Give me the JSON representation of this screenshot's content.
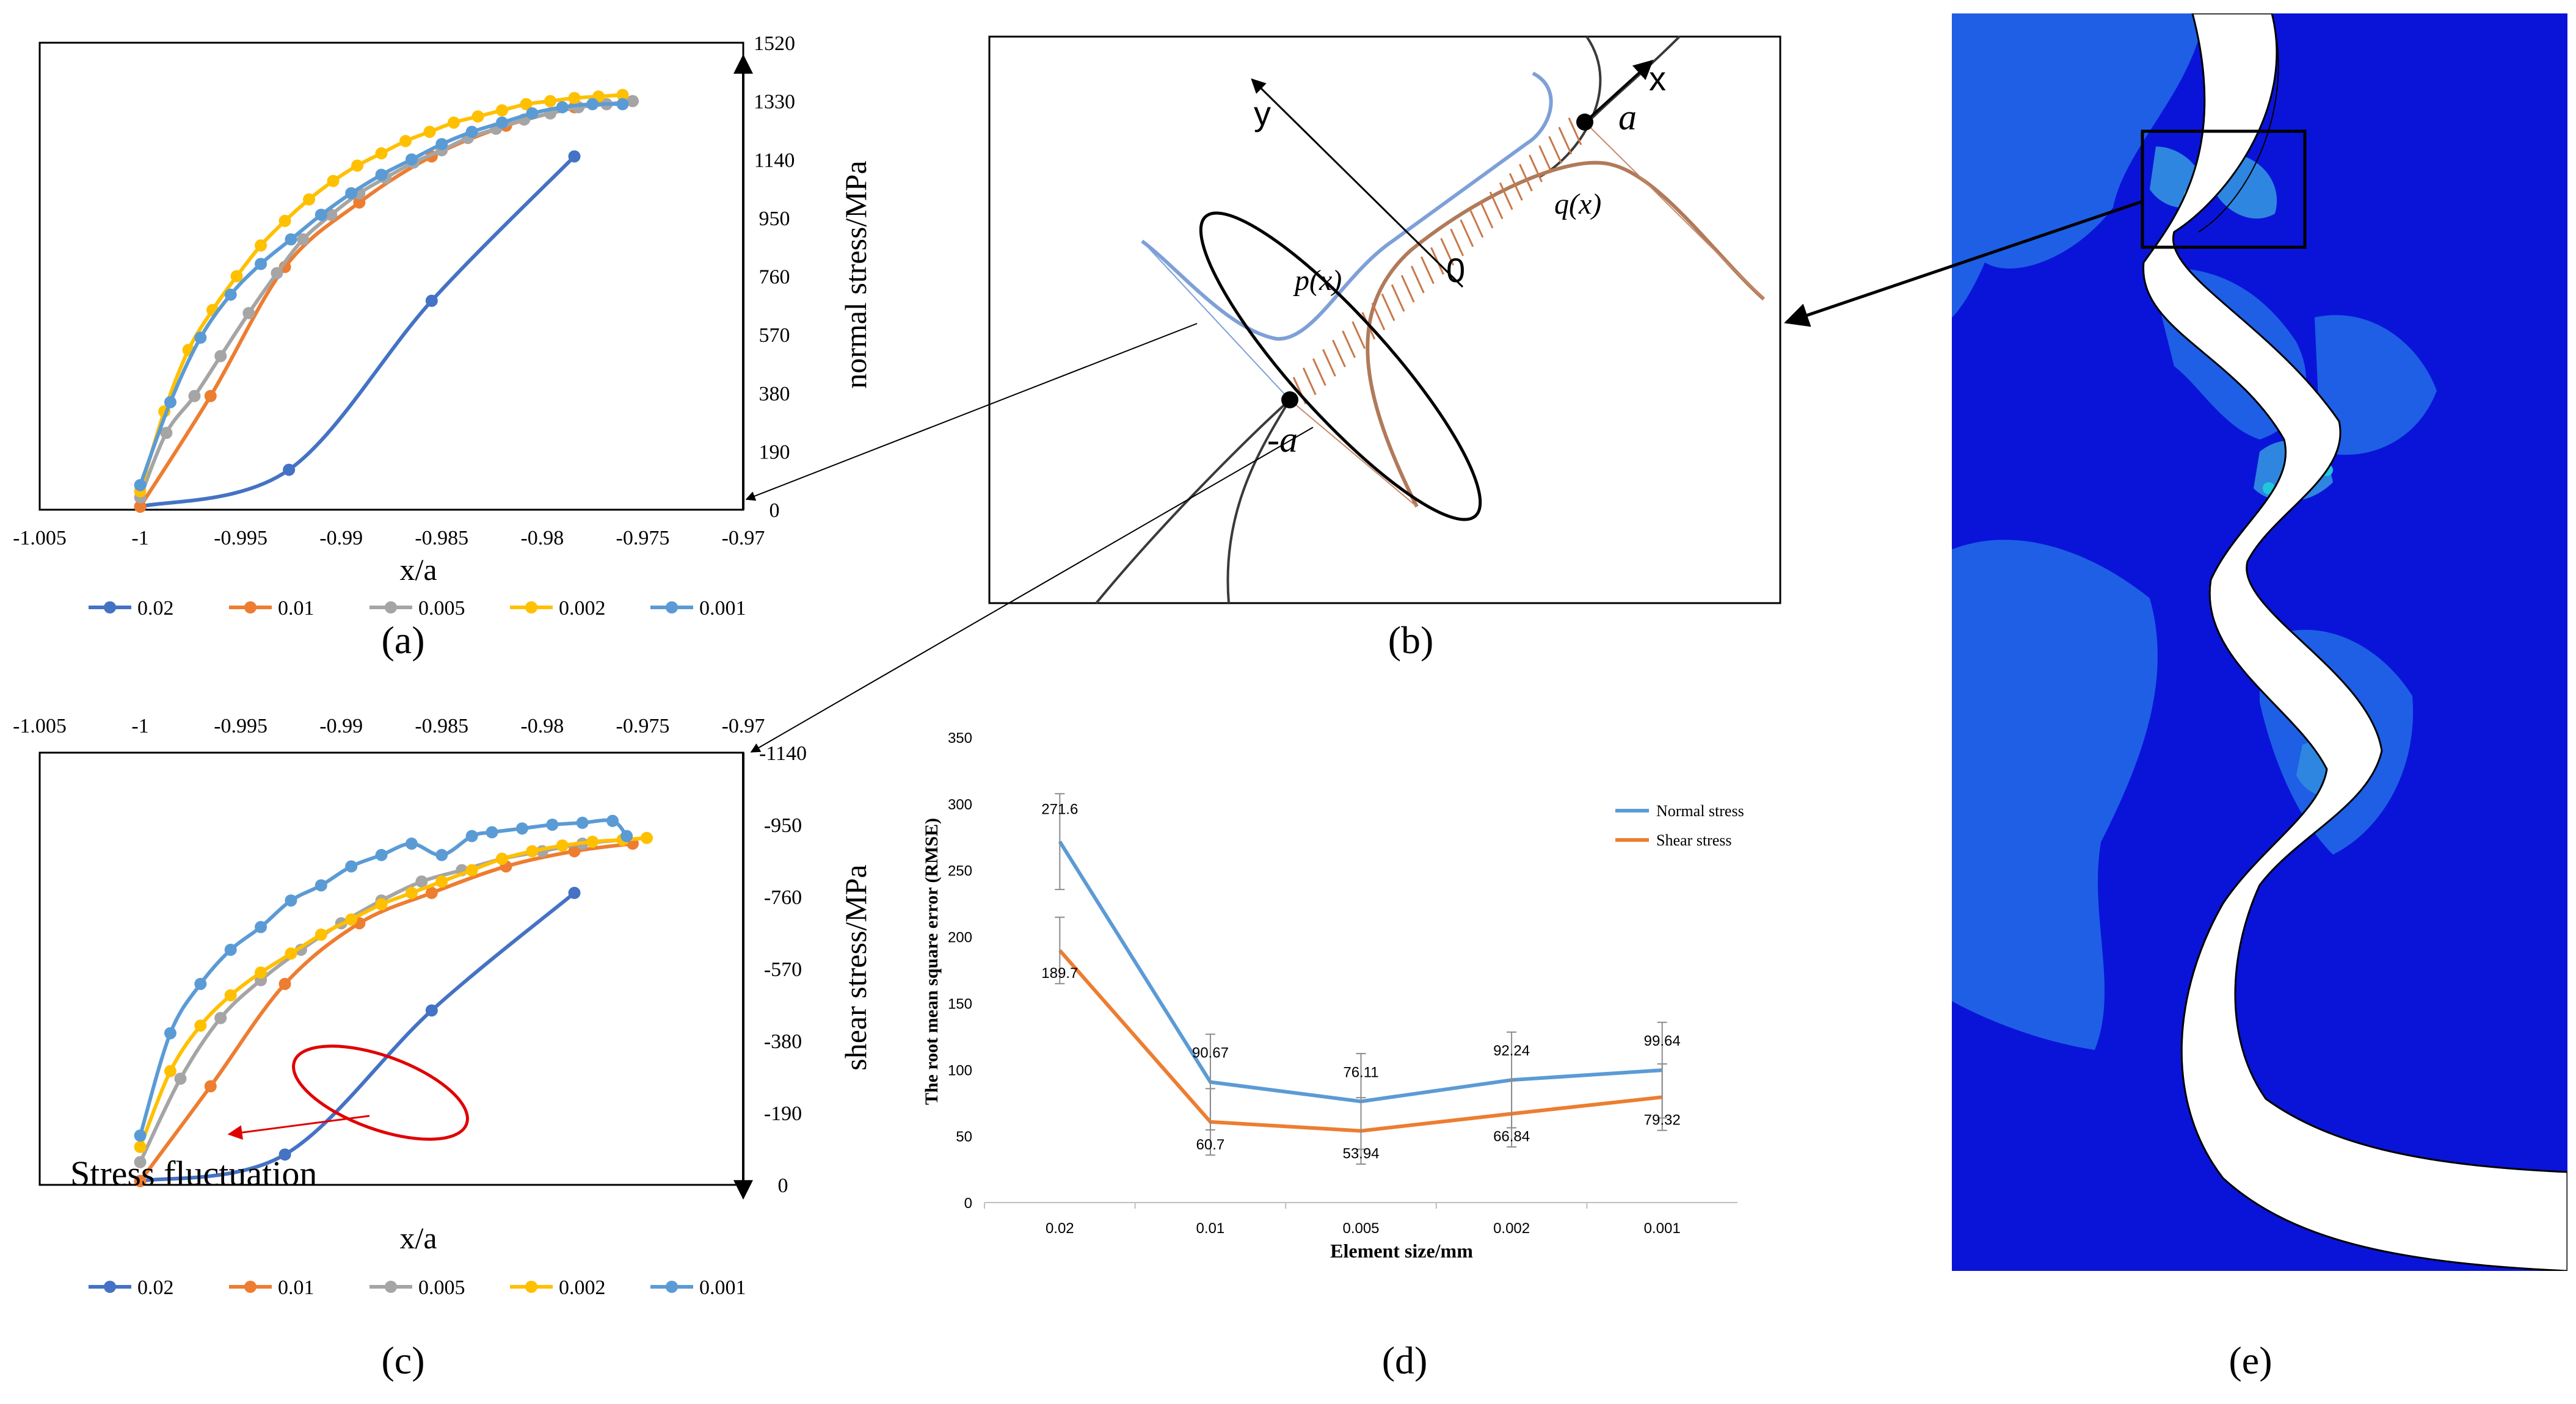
{
  "panels": {
    "a": {
      "label": "(a)",
      "chart_data": {
        "type": "line",
        "title": "",
        "xlabel": "x/a",
        "ylabel": "normal stress/MPa",
        "xlim": [
          -1.005,
          -0.97
        ],
        "ylim": [
          0,
          1520
        ],
        "xticks": [
          "-1.005",
          "-1",
          "-0.995",
          "-0.99",
          "-0.985",
          "-0.98",
          "-0.975",
          "-0.97"
        ],
        "yticks": [
          "0",
          "190",
          "380",
          "570",
          "760",
          "950",
          "1140",
          "1330",
          "1520"
        ],
        "legend": "bottom",
        "series": [
          {
            "name": "0.02",
            "color": "#4472C4",
            "x": [
              -1,
              -0.9926,
              -0.9855,
              -0.9784
            ],
            "y": [
              10,
              130,
              680,
              1150
            ]
          },
          {
            "name": "0.01",
            "color": "#ED7D31",
            "x": [
              -1,
              -0.9965,
              -0.9928,
              -0.9891,
              -0.9855,
              -0.9818,
              -0.9784
            ],
            "y": [
              10,
              370,
              790,
              1000,
              1150,
              1250,
              1310
            ]
          },
          {
            "name": "0.005",
            "color": "#A5A5A5",
            "x": [
              -1,
              -0.9987,
              -0.9973,
              -0.996,
              -0.9946,
              -0.9932,
              -0.9919,
              -0.9905,
              -0.9891,
              -0.9878,
              -0.9864,
              -0.985,
              -0.9837,
              -0.9823,
              -0.9809,
              -0.9796,
              -0.9782,
              -0.9768,
              -0.9755
            ],
            "y": [
              40,
              250,
              370,
              500,
              640,
              770,
              880,
              960,
              1030,
              1080,
              1130,
              1170,
              1210,
              1240,
              1270,
              1290,
              1310,
              1320,
              1330
            ]
          },
          {
            "name": "0.002",
            "color": "#FFC000",
            "x": [
              -1,
              -0.9988,
              -0.9976,
              -0.9964,
              -0.9952,
              -0.994,
              -0.9928,
              -0.9916,
              -0.9904,
              -0.9892,
              -0.988,
              -0.9868,
              -0.9856,
              -0.9844,
              -0.9832,
              -0.982,
              -0.9808,
              -0.9796,
              -0.9784,
              -0.9772,
              -0.976
            ],
            "y": [
              60,
              320,
              520,
              650,
              760,
              860,
              940,
              1010,
              1070,
              1120,
              1160,
              1200,
              1230,
              1260,
              1280,
              1300,
              1320,
              1330,
              1340,
              1345,
              1350
            ]
          },
          {
            "name": "0.001",
            "color": "#5B9BD5",
            "x": [
              -1,
              -0.9985,
              -0.997,
              -0.9955,
              -0.994,
              -0.9925,
              -0.991,
              -0.9895,
              -0.988,
              -0.9865,
              -0.985,
              -0.9835,
              -0.982,
              -0.9805,
              -0.979,
              -0.9775,
              -0.976
            ],
            "y": [
              80,
              350,
              560,
              700,
              800,
              880,
              960,
              1030,
              1090,
              1140,
              1190,
              1230,
              1260,
              1290,
              1310,
              1320,
              1320
            ]
          }
        ]
      }
    },
    "b": {
      "label": "(b)",
      "axis_x": "x",
      "axis_y": "y",
      "point_a": "a",
      "point_neg_a": "-a",
      "origin": "0",
      "p_label": "p(x)",
      "q_label": "q(x)"
    },
    "c": {
      "label": "(c)",
      "annotation": "Stress fluctuation",
      "chart_data": {
        "type": "line",
        "title": "",
        "xlabel": "x/a",
        "ylabel": "shear stress/MPa",
        "xlim": [
          -1.005,
          -0.97
        ],
        "ylim": [
          -1140,
          0
        ],
        "xticks": [
          "-1.005",
          "-1",
          "-0.995",
          "-0.99",
          "-0.985",
          "-0.98",
          "-0.975",
          "-0.97"
        ],
        "yticks": [
          "0",
          "-190",
          "-380",
          "-570",
          "-760",
          "-950",
          "-1140"
        ],
        "legend": "bottom",
        "series": [
          {
            "name": "0.02",
            "color": "#4472C4",
            "x": [
              -1,
              -0.9928,
              -0.9855,
              -0.9784
            ],
            "y": [
              -10,
              -80,
              -460,
              -770
            ]
          },
          {
            "name": "0.01",
            "color": "#ED7D31",
            "x": [
              -1,
              -0.9965,
              -0.9928,
              -0.9891,
              -0.9855,
              -0.9818,
              -0.9784,
              -0.9755
            ],
            "y": [
              -10,
              -260,
              -530,
              -690,
              -770,
              -840,
              -880,
              -900
            ]
          },
          {
            "name": "0.005",
            "color": "#A5A5A5",
            "x": [
              -1,
              -0.998,
              -0.996,
              -0.994,
              -0.992,
              -0.99,
              -0.988,
              -0.986,
              -0.984,
              -0.982,
              -0.98,
              -0.978,
              -0.976
            ],
            "y": [
              -60,
              -280,
              -440,
              -540,
              -620,
              -690,
              -750,
              -800,
              -830,
              -860,
              -880,
              -900,
              -910
            ]
          },
          {
            "name": "0.002",
            "color": "#FFC000",
            "x": [
              -1,
              -0.9985,
              -0.997,
              -0.9955,
              -0.994,
              -0.9925,
              -0.991,
              -0.9895,
              -0.988,
              -0.9865,
              -0.985,
              -0.9835,
              -0.982,
              -0.9805,
              -0.979,
              -0.9775,
              -0.976,
              -0.9748
            ],
            "y": [
              -100,
              -300,
              -420,
              -500,
              -560,
              -610,
              -660,
              -700,
              -740,
              -770,
              -800,
              -830,
              -860,
              -880,
              -895,
              -905,
              -910,
              -915
            ]
          },
          {
            "name": "0.001",
            "color": "#5B9BD5",
            "x": [
              -1,
              -0.9985,
              -0.997,
              -0.9955,
              -0.994,
              -0.9925,
              -0.991,
              -0.9895,
              -0.988,
              -0.9865,
              -0.985,
              -0.9835,
              -0.9825,
              -0.981,
              -0.9795,
              -0.978,
              -0.9765,
              -0.9758
            ],
            "y": [
              -130,
              -400,
              -530,
              -620,
              -680,
              -750,
              -790,
              -840,
              -870,
              -900,
              -870,
              -920,
              -930,
              -940,
              -950,
              -955,
              -960,
              -920
            ]
          }
        ]
      }
    },
    "d": {
      "label": "(d)",
      "chart_data": {
        "type": "line",
        "title": "",
        "xlabel": "Element size/mm",
        "ylabel": "The root mean square error (RMSE)",
        "categories": [
          "0.02",
          "0.01",
          "0.005",
          "0.002",
          "0.001"
        ],
        "ylim": [
          0,
          350
        ],
        "yticks": [
          "0",
          "50",
          "100",
          "150",
          "200",
          "250",
          "300",
          "350"
        ],
        "legend": "top-right",
        "series": [
          {
            "name": "Normal stress",
            "color": "#5B9BD5",
            "values": [
              271.6,
              90.67,
              76.11,
              92.24,
              99.64
            ],
            "labels": [
              "271.6",
              "90.67",
              "76.11",
              "92.24",
              "99.64"
            ],
            "error": [
              36,
              36,
              36,
              36,
              36
            ]
          },
          {
            "name": "Shear stress",
            "color": "#ED7D31",
            "values": [
              189.7,
              60.7,
              53.94,
              66.84,
              79.32
            ],
            "labels": [
              "189.7",
              "60.7",
              "53.94",
              "66.84",
              "79.32"
            ],
            "error": [
              25,
              25,
              25,
              25,
              25
            ]
          }
        ]
      }
    },
    "e": {
      "label": "(e)"
    }
  },
  "colors": {
    "deep_blue": "#0A14D8",
    "mid_blue": "#1E5FE6",
    "light_blue": "#2E86E0",
    "cyan": "#22C6DC",
    "green": "#58E09A"
  }
}
